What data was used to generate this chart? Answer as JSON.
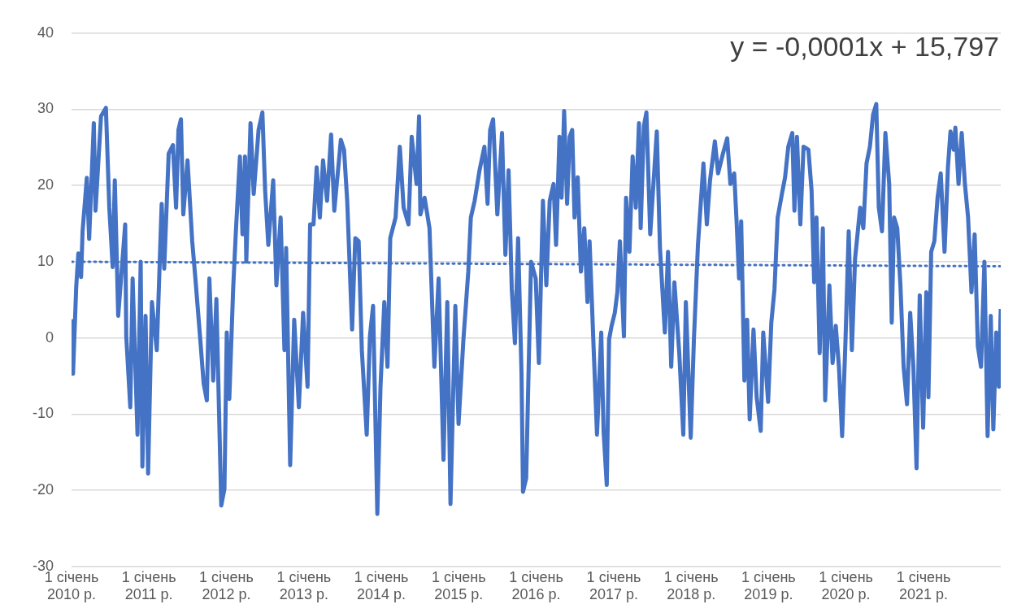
{
  "chart_data": {
    "type": "line",
    "marker": "none",
    "legend": false,
    "grid": "y",
    "annotations": [
      "y = -0,0001x + 15,797"
    ],
    "xlim": [
      "2010-01-01",
      "2021-12-31"
    ],
    "xticks": [
      {
        "value": "2010-01-01",
        "label": "1 січень 2010 р."
      },
      {
        "value": "2011-01-01",
        "label": "1 січень 2011 р."
      },
      {
        "value": "2012-01-01",
        "label": "1 січень 2012 р."
      },
      {
        "value": "2013-01-01",
        "label": "1 січень 2013 р."
      },
      {
        "value": "2014-01-01",
        "label": "1 січень 2014 р."
      },
      {
        "value": "2015-01-01",
        "label": "1 січень 2015 р."
      },
      {
        "value": "2016-01-01",
        "label": "1 січень 2016 р."
      },
      {
        "value": "2017-01-01",
        "label": "1 січень 2017 р."
      },
      {
        "value": "2018-01-01",
        "label": "1 січень 2018 р."
      },
      {
        "value": "2019-01-01",
        "label": "1 січень 2019 р."
      },
      {
        "value": "2020-01-01",
        "label": "1 січень 2020 р."
      },
      {
        "value": "2021-01-01",
        "label": "1 січень 2021 р."
      }
    ],
    "ylim": [
      -30,
      40
    ],
    "yticks": [
      -30,
      -20,
      -10,
      0,
      10,
      20,
      30,
      40
    ],
    "series": [
      {
        "color": "#4472c4",
        "line_style": "solid",
        "x": [
          "2010-01-01",
          "2010-01-05",
          "2010-01-08",
          "2010-01-23",
          "2010-02-02",
          "2010-02-15",
          "2010-02-22",
          "2010-03-14",
          "2010-03-25",
          "2010-04-16",
          "2010-04-24",
          "2010-05-20",
          "2010-06-12",
          "2010-06-28",
          "2010-07-14",
          "2010-07-24",
          "2010-08-09",
          "2010-09-11",
          "2010-09-16",
          "2010-10-05",
          "2010-10-16",
          "2010-11-08",
          "2010-11-23",
          "2010-12-01",
          "2010-12-16",
          "2010-12-28",
          "2011-01-15",
          "2011-02-07",
          "2011-03-02",
          "2011-03-14",
          "2011-04-04",
          "2011-04-24",
          "2011-05-09",
          "2011-05-20",
          "2011-06-01",
          "2011-06-12",
          "2011-07-02",
          "2011-07-24",
          "2011-08-08",
          "2011-08-31",
          "2011-09-16",
          "2011-10-01",
          "2011-10-13",
          "2011-10-31",
          "2011-11-15",
          "2011-12-08",
          "2011-12-23",
          "2012-01-03",
          "2012-01-15",
          "2012-02-02",
          "2012-02-15",
          "2012-03-05",
          "2012-03-17",
          "2012-03-29",
          "2012-04-04",
          "2012-04-24",
          "2012-05-09",
          "2012-06-01",
          "2012-06-19",
          "2012-07-02",
          "2012-07-17",
          "2012-08-09",
          "2012-08-24",
          "2012-09-13",
          "2012-10-01",
          "2012-10-09",
          "2012-10-28",
          "2012-11-16",
          "2012-12-08",
          "2012-12-28",
          "2013-01-18",
          "2013-01-30",
          "2013-02-15",
          "2013-03-02",
          "2013-03-17",
          "2013-04-01",
          "2013-04-20",
          "2013-05-09",
          "2013-05-24",
          "2013-06-24",
          "2013-07-09",
          "2013-07-24",
          "2013-08-16",
          "2013-08-31",
          "2013-09-16",
          "2013-10-01",
          "2013-10-24",
          "2013-11-08",
          "2013-11-23",
          "2013-12-13",
          "2013-12-28",
          "2014-01-15",
          "2014-01-30",
          "2014-02-12",
          "2014-03-09",
          "2014-03-29",
          "2014-04-16",
          "2014-05-09",
          "2014-05-24",
          "2014-06-16",
          "2014-06-28",
          "2014-07-04",
          "2014-07-24",
          "2014-08-16",
          "2014-09-08",
          "2014-09-28",
          "2014-10-21",
          "2014-11-08",
          "2014-11-23",
          "2014-12-16",
          "2014-12-31",
          "2015-01-23",
          "2015-02-15",
          "2015-02-27",
          "2015-03-17",
          "2015-04-09",
          "2015-05-02",
          "2015-05-17",
          "2015-05-29",
          "2015-06-12",
          "2015-07-02",
          "2015-07-24",
          "2015-08-09",
          "2015-08-24",
          "2015-09-08",
          "2015-09-23",
          "2015-10-08",
          "2015-10-24",
          "2015-10-31",
          "2015-11-15",
          "2015-12-08",
          "2015-12-30",
          "2016-01-14",
          "2016-02-02",
          "2016-02-18",
          "2016-03-05",
          "2016-03-23",
          "2016-04-04",
          "2016-04-20",
          "2016-04-30",
          "2016-05-12",
          "2016-05-26",
          "2016-06-07",
          "2016-06-19",
          "2016-06-30",
          "2016-07-15",
          "2016-07-30",
          "2016-08-15",
          "2016-08-30",
          "2016-09-09",
          "2016-09-29",
          "2016-10-14",
          "2016-11-03",
          "2016-11-14",
          "2016-11-29",
          "2016-12-10",
          "2016-12-22",
          "2017-01-06",
          "2017-01-18",
          "2017-01-30",
          "2017-02-18",
          "2017-02-28",
          "2017-03-16",
          "2017-03-31",
          "2017-04-15",
          "2017-04-30",
          "2017-05-08",
          "2017-05-23",
          "2017-06-04",
          "2017-06-22",
          "2017-07-23",
          "2017-08-07",
          "2017-08-30",
          "2017-09-14",
          "2017-09-29",
          "2017-10-14",
          "2017-11-06",
          "2017-11-25",
          "2017-12-07",
          "2017-12-30",
          "2018-01-14",
          "2018-02-02",
          "2018-02-13",
          "2018-02-28",
          "2018-03-16",
          "2018-03-31",
          "2018-04-23",
          "2018-05-08",
          "2018-05-31",
          "2018-06-20",
          "2018-07-05",
          "2018-07-23",
          "2018-08-04",
          "2018-08-15",
          "2018-08-25",
          "2018-09-09",
          "2018-09-22",
          "2018-10-04",
          "2018-10-22",
          "2018-11-06",
          "2018-11-25",
          "2018-12-07",
          "2018-12-30",
          "2019-01-14",
          "2019-01-29",
          "2019-02-13",
          "2019-03-05",
          "2019-03-20",
          "2019-04-04",
          "2019-04-23",
          "2019-05-03",
          "2019-05-15",
          "2019-05-31",
          "2019-06-15",
          "2019-07-08",
          "2019-07-23",
          "2019-08-04",
          "2019-08-15",
          "2019-08-30",
          "2019-09-14",
          "2019-09-25",
          "2019-10-15",
          "2019-10-30",
          "2019-11-14",
          "2019-11-29",
          "2019-12-14",
          "2019-12-30",
          "2020-01-14",
          "2020-01-29",
          "2020-02-13",
          "2020-03-08",
          "2020-03-23",
          "2020-04-07",
          "2020-04-23",
          "2020-05-08",
          "2020-05-23",
          "2020-06-04",
          "2020-06-19",
          "2020-07-05",
          "2020-07-23",
          "2020-08-04",
          "2020-08-15",
          "2020-08-30",
          "2020-09-14",
          "2020-09-29",
          "2020-10-15",
          "2020-10-30",
          "2020-11-14",
          "2020-11-29",
          "2020-12-14",
          "2020-12-30",
          "2021-01-14",
          "2021-01-24",
          "2021-02-06",
          "2021-02-21",
          "2021-03-08",
          "2021-03-23",
          "2021-04-10",
          "2021-04-26",
          "2021-05-08",
          "2021-05-23",
          "2021-05-31",
          "2021-06-15",
          "2021-06-30",
          "2021-07-15",
          "2021-07-30",
          "2021-08-15",
          "2021-08-30",
          "2021-09-14",
          "2021-09-29",
          "2021-10-15",
          "2021-10-30",
          "2021-11-14",
          "2021-11-26",
          "2021-12-10",
          "2021-12-22",
          "2021-12-31"
        ],
        "values": [
          -0.7,
          2.2,
          -4.7,
          6.7,
          11.1,
          8,
          14,
          21,
          13,
          28.2,
          16.7,
          29.1,
          30.2,
          17.1,
          9.3,
          20.7,
          2.9,
          14.9,
          0.2,
          -9.1,
          7.8,
          -12.7,
          10,
          -16.9,
          2.9,
          -17.8,
          4.7,
          -1.6,
          17.6,
          9.1,
          24.2,
          25.3,
          17.1,
          27.3,
          28.7,
          16.2,
          23.3,
          12.7,
          7.8,
          -0.2,
          -6,
          -8.2,
          7.8,
          -5.6,
          5.1,
          -22,
          -19.8,
          0.7,
          -8,
          6.4,
          14,
          23.8,
          13.6,
          23.8,
          10,
          28.2,
          18.9,
          27.3,
          29.6,
          19.3,
          12.2,
          20.7,
          6.9,
          15.8,
          -1.6,
          11.8,
          -16.7,
          2.4,
          -9.1,
          3.3,
          -6.4,
          14.9,
          14.9,
          22.4,
          15.8,
          23.3,
          18,
          26.7,
          16.7,
          26,
          24.7,
          18,
          1.1,
          13.1,
          12.7,
          -1.6,
          -12.7,
          0.2,
          4.2,
          -23.1,
          -6.4,
          4.7,
          -3.8,
          13.1,
          15.8,
          25.1,
          17.1,
          14.9,
          26.4,
          20.2,
          29.1,
          16.2,
          18.4,
          14.4,
          -3.8,
          7.8,
          -16,
          4.7,
          -21.8,
          4.2,
          -11.3,
          -0.2,
          8.7,
          15.8,
          18,
          22,
          25.1,
          17.6,
          27.3,
          28.7,
          16.2,
          26.9,
          10.9,
          22,
          6.4,
          -0.7,
          13.1,
          -4.7,
          -20.2,
          -18.4,
          10,
          7.8,
          -3.3,
          18,
          6.9,
          18,
          20.2,
          12.2,
          26.4,
          18.4,
          29.8,
          17.6,
          26.4,
          27.3,
          15.8,
          21.1,
          8.7,
          14.4,
          4.7,
          12.7,
          -2,
          -12.7,
          0.7,
          -12.2,
          -19.3,
          -0.2,
          1.6,
          3.3,
          6,
          12.7,
          0.2,
          18.4,
          11.3,
          23.8,
          17.1,
          28.2,
          14.4,
          27.8,
          29.6,
          13.6,
          27.1,
          11.8,
          0.7,
          11.3,
          -3.8,
          7.3,
          -2,
          -12.7,
          4.7,
          -13.1,
          -0.2,
          12.2,
          16.7,
          22.9,
          14.9,
          20.7,
          25.8,
          21.6,
          24.2,
          26.2,
          20.2,
          21.6,
          14.9,
          7.8,
          15.3,
          -5.6,
          2.4,
          -10.7,
          1.1,
          -7.8,
          -12.2,
          0.7,
          -8.4,
          2,
          6.4,
          15.8,
          18.9,
          21.1,
          25.1,
          26.9,
          16.7,
          26.4,
          14.9,
          25.1,
          24.7,
          19.3,
          7.3,
          15.8,
          -2,
          14.4,
          -8.2,
          6.9,
          -3.3,
          1.6,
          -3.8,
          -12.9,
          -0.2,
          14,
          -1.6,
          10.4,
          17.1,
          14.4,
          22.9,
          25.1,
          29.3,
          30.7,
          17.1,
          14,
          26.9,
          20.2,
          2,
          15.8,
          14.4,
          6.9,
          -3.8,
          -8.7,
          3.3,
          -3.8,
          -17.1,
          5.6,
          -11.8,
          6,
          -7.8,
          11.3,
          12.7,
          18.4,
          21.6,
          11.3,
          22.4,
          27.1,
          24.7,
          27.6,
          20.2,
          26.9,
          20.2,
          15.8,
          6,
          13.6,
          -1.1,
          -3.8,
          10,
          -12.9,
          2.9,
          -12,
          0.7,
          -6.4,
          3.8
        ]
      },
      {
        "type": "line",
        "color": "#4472c4",
        "line_style": "dotted",
        "x": [
          "2010-01-01",
          "2021-12-31"
        ],
        "values": [
          10,
          9.4
        ]
      }
    ]
  }
}
